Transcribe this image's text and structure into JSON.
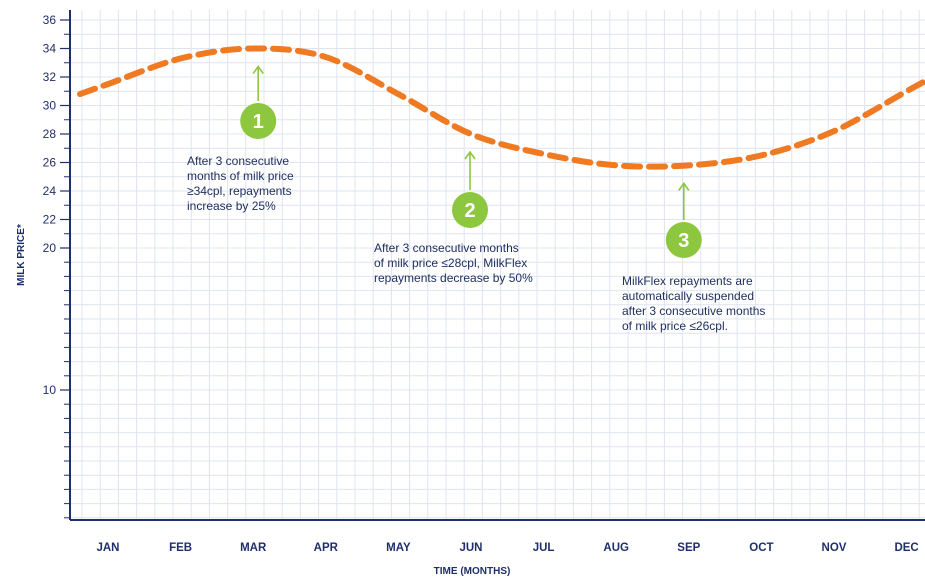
{
  "chart_data": {
    "type": "line",
    "xlabel": "TIME (MONTHS)",
    "ylabel": "MILK PRICE*",
    "y_ticks": [
      10,
      20,
      22,
      24,
      26,
      28,
      30,
      32,
      34,
      36
    ],
    "y_minor_step": 1,
    "categories": [
      "JAN",
      "FEB",
      "MAR",
      "APR",
      "MAY",
      "JUN",
      "JUL",
      "AUG",
      "SEP",
      "OCT",
      "NOV",
      "DEC"
    ],
    "series": [
      {
        "x": [
          "JAN",
          "FEB",
          "MAR",
          "APR",
          "MAY",
          "JUN",
          "JUL",
          "AUG",
          "SEP",
          "OCT",
          "NOV",
          "DEC"
        ],
        "values": [
          31.5,
          33.3,
          34.0,
          33.4,
          30.8,
          28.0,
          26.6,
          25.8,
          25.8,
          26.5,
          28.2,
          31.0
        ],
        "color": "#f07a22",
        "style": "dashed"
      }
    ],
    "grid": true,
    "annotations": [
      {
        "number": "1",
        "target": "MAR",
        "text": [
          "After 3 consecutive",
          "months of milk price",
          "≥34cpl, repayments",
          "increase by 25%"
        ]
      },
      {
        "number": "2",
        "target": "JUN",
        "text": [
          "After 3 consecutive months",
          "of milk price ≤28cpl, MilkFlex",
          "repayments decrease by 50%"
        ]
      },
      {
        "number": "3",
        "target": "SEP",
        "text": [
          "MilkFlex repayments are",
          "automatically suspended",
          "after 3 consecutive months",
          "of milk price ≤26cpl."
        ]
      }
    ],
    "colors": {
      "line": "#f07a22",
      "marker": "#8dc63f",
      "axis": "#1f2f6b",
      "grid": "#dfe4ef"
    }
  }
}
